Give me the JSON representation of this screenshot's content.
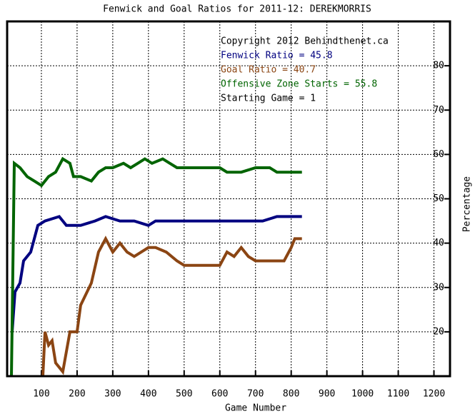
{
  "chart_data": {
    "type": "line",
    "title": "Fenwick and Goal Ratios for 2011-12: DEREKMORRIS",
    "x_label": "Game Number",
    "y_label": "Percentage",
    "annotations": [
      "Copyright 2012 Behindthenet.ca",
      "Starting Game = 1"
    ],
    "xlim": [
      0,
      1245
    ],
    "ylim": [
      10,
      90
    ],
    "xticks": [
      100,
      200,
      300,
      400,
      500,
      600,
      700,
      800,
      900,
      1000,
      1100,
      1200
    ],
    "yticks": [
      20,
      30,
      40,
      50,
      60,
      70,
      80
    ],
    "grid": true,
    "series": [
      {
        "name": "Fenwick Ratio = 45.8",
        "color": "#000080",
        "x": [
          18,
          26,
          40,
          50,
          70,
          90,
          110,
          150,
          170,
          210,
          250,
          280,
          320,
          360,
          400,
          420,
          460,
          500,
          560,
          600,
          640,
          680,
          720,
          760,
          800,
          830
        ],
        "values": [
          20,
          29,
          31,
          36,
          38,
          44,
          45,
          46,
          44,
          44,
          45,
          46,
          45,
          45,
          44,
          45,
          45,
          45,
          45,
          45,
          45,
          45,
          45,
          46,
          46,
          46
        ]
      },
      {
        "name": "Goal Ratio = 40.7",
        "color": "#8b4513",
        "x": [
          104,
          110,
          120,
          130,
          140,
          160,
          180,
          200,
          210,
          240,
          260,
          280,
          300,
          320,
          340,
          360,
          380,
          400,
          420,
          450,
          480,
          500,
          560,
          600,
          620,
          640,
          660,
          680,
          700,
          740,
          780,
          800,
          810,
          830
        ],
        "values": [
          10,
          20,
          17,
          18,
          13,
          11,
          20,
          20,
          26,
          31,
          38,
          41,
          38,
          40,
          38,
          37,
          38,
          39,
          39,
          38,
          36,
          35,
          35,
          35,
          38,
          37,
          39,
          37,
          36,
          36,
          36,
          39,
          41,
          41
        ]
      },
      {
        "name": "Offensive Zone Starts = 55.8",
        "color": "#006400",
        "x": [
          16,
          24,
          40,
          60,
          80,
          100,
          120,
          140,
          160,
          180,
          190,
          210,
          240,
          260,
          280,
          300,
          330,
          350,
          370,
          390,
          410,
          440,
          460,
          480,
          520,
          560,
          600,
          620,
          660,
          700,
          740,
          760,
          790,
          830
        ],
        "values": [
          10,
          58,
          57,
          55,
          54,
          53,
          55,
          56,
          59,
          58,
          55,
          55,
          54,
          56,
          57,
          57,
          58,
          57,
          58,
          59,
          58,
          59,
          58,
          57,
          57,
          57,
          57,
          56,
          56,
          57,
          57,
          56,
          56,
          56
        ]
      }
    ]
  }
}
